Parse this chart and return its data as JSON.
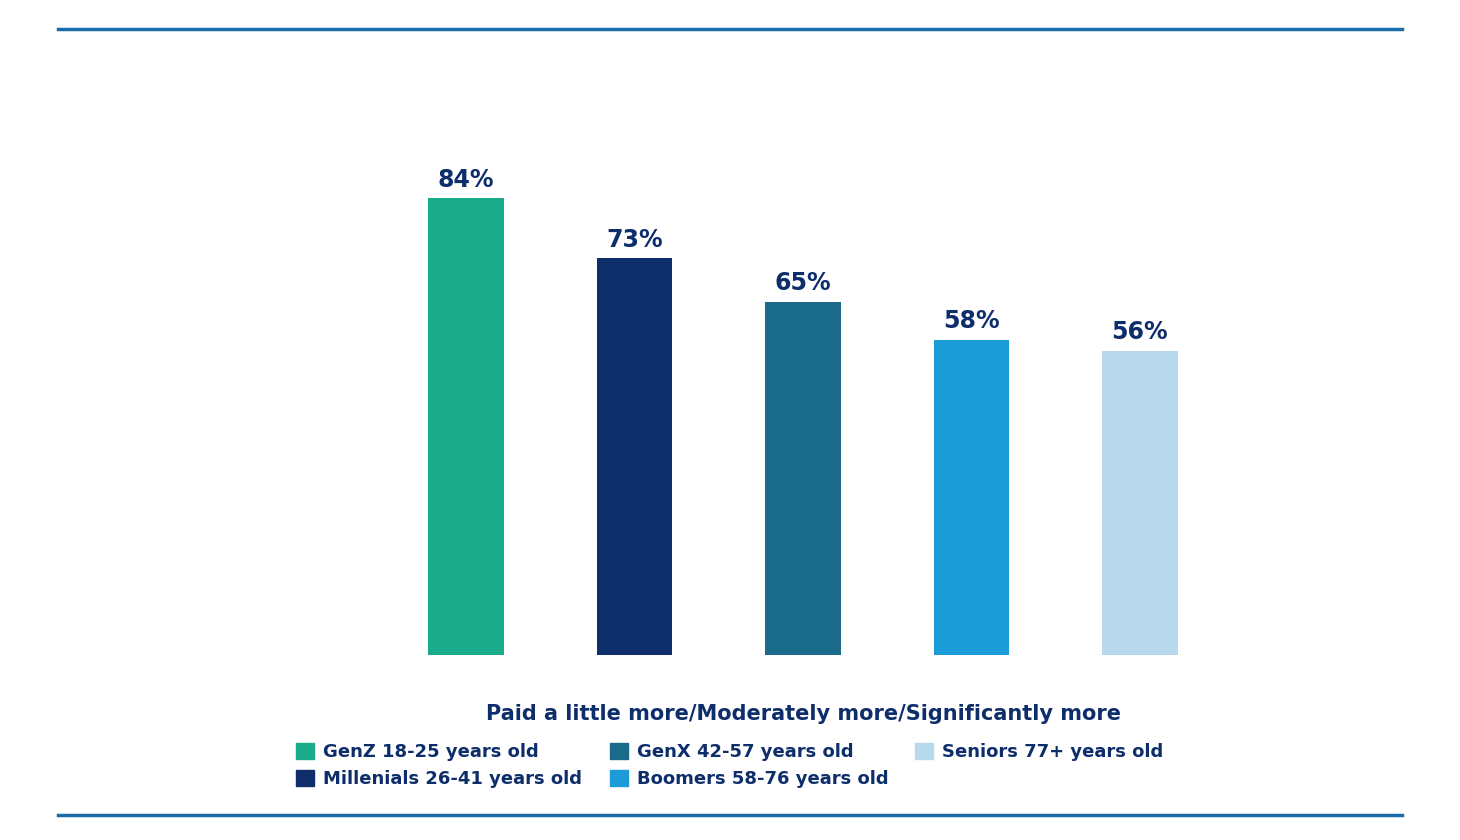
{
  "categories": [
    "GenZ",
    "Millenials",
    "GenX",
    "Boomers",
    "Seniors"
  ],
  "values": [
    84,
    73,
    65,
    58,
    56
  ],
  "bar_colors": [
    "#1aab8a",
    "#0d2d6b",
    "#1a6b8a",
    "#1b9cd8",
    "#b8d9eb"
  ],
  "value_labels": [
    "84%",
    "73%",
    "65%",
    "58%",
    "56%"
  ],
  "xlabel": "Paid a little more/Moderately more/Significantly more",
  "legend_labels": [
    "GenZ 18-25 years old",
    "Millenials 26-41 years old",
    "GenX 42-57 years old",
    "Boomers 58-76 years old",
    "Seniors 77+ years old"
  ],
  "legend_colors": [
    "#1aab8a",
    "#0d2d6b",
    "#1a6b8a",
    "#1b9cd8",
    "#b8d9eb"
  ],
  "text_color": "#0d2d6b",
  "background_color": "#ffffff",
  "border_color": "#1b6ca8",
  "ylim": [
    0,
    105
  ],
  "bar_width": 0.45,
  "value_fontsize": 17,
  "xlabel_fontsize": 15,
  "legend_fontsize": 13
}
